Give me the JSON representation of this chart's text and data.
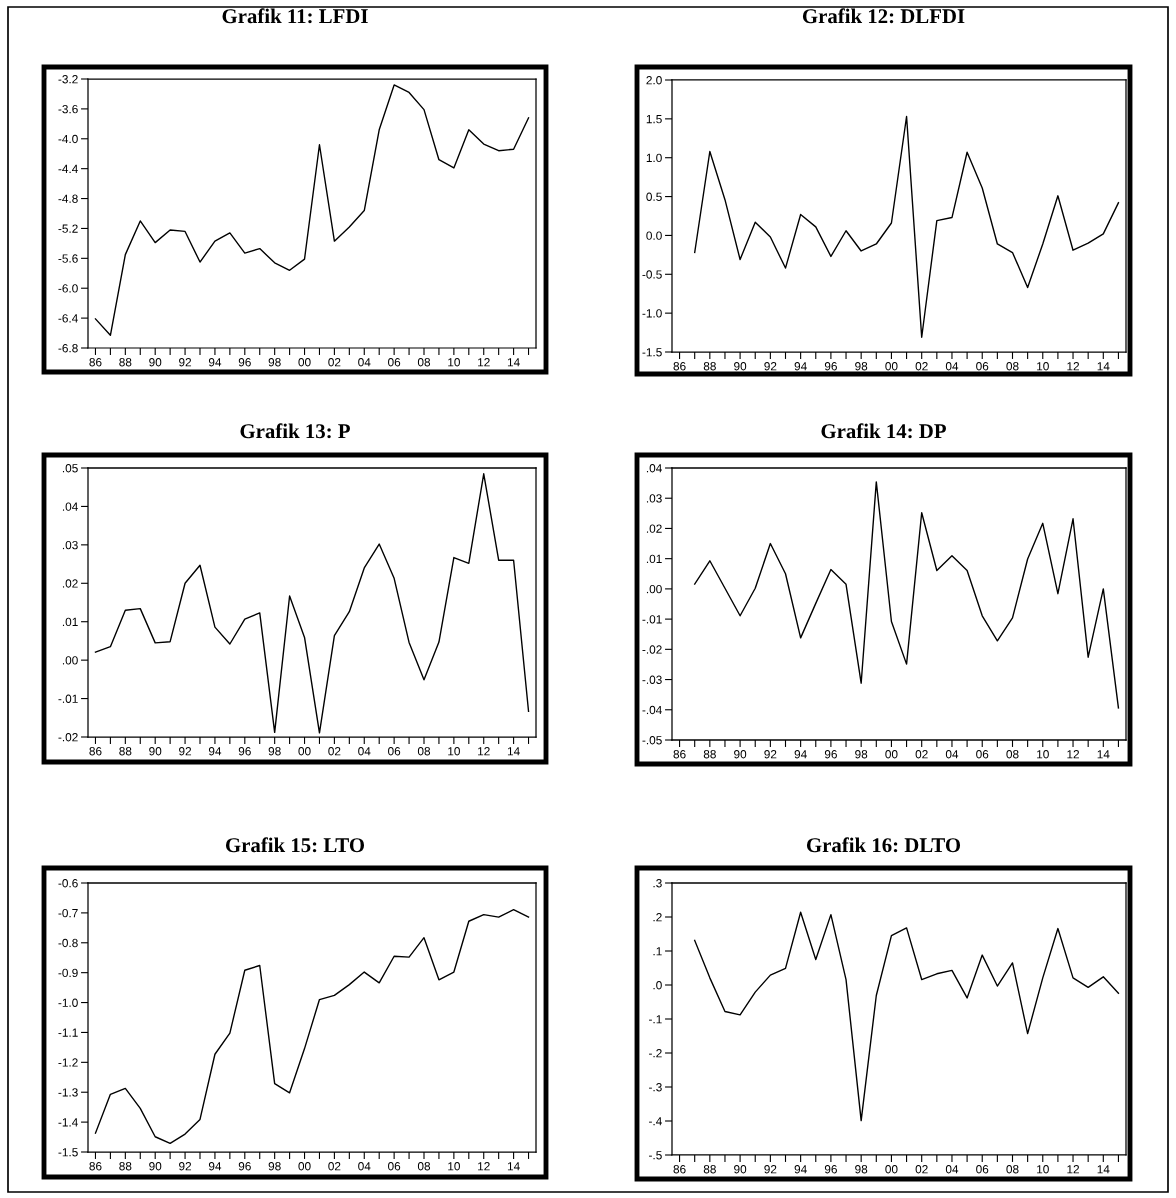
{
  "chart_data": [
    {
      "type": "line",
      "title": "Grafik 11: LFDI",
      "color": "#000000",
      "line_style": "solid",
      "x": [
        1986,
        1987,
        1988,
        1989,
        1990,
        1991,
        1992,
        1993,
        1994,
        1995,
        1996,
        1997,
        1998,
        1999,
        2000,
        2001,
        2002,
        2003,
        2004,
        2005,
        2006,
        2007,
        2008,
        2009,
        2010,
        2011,
        2012,
        2013,
        2014,
        2015
      ],
      "values": [
        -6.41,
        -6.63,
        -5.55,
        -5.1,
        -5.39,
        -5.22,
        -5.24,
        -5.65,
        -5.37,
        -5.26,
        -5.53,
        -5.47,
        -5.66,
        -5.76,
        -5.61,
        -4.08,
        -5.37,
        -5.18,
        -4.96,
        -3.88,
        -3.28,
        -3.38,
        -3.61,
        -4.28,
        -4.39,
        -3.88,
        -4.07,
        -4.16,
        -4.14,
        -3.72
      ],
      "xlim": [
        1985.5,
        2015.5
      ],
      "xticks": [
        {
          "value": 1986,
          "label": "86"
        },
        {
          "value": 1987,
          "label": null
        },
        {
          "value": 1988,
          "label": "88"
        },
        {
          "value": 1989,
          "label": null
        },
        {
          "value": 1990,
          "label": "90"
        },
        {
          "value": 1991,
          "label": null
        },
        {
          "value": 1992,
          "label": "92"
        },
        {
          "value": 1993,
          "label": null
        },
        {
          "value": 1994,
          "label": "94"
        },
        {
          "value": 1995,
          "label": null
        },
        {
          "value": 1996,
          "label": "96"
        },
        {
          "value": 1997,
          "label": null
        },
        {
          "value": 1998,
          "label": "98"
        },
        {
          "value": 1999,
          "label": null
        },
        {
          "value": 2000,
          "label": "00"
        },
        {
          "value": 2001,
          "label": null
        },
        {
          "value": 2002,
          "label": "02"
        },
        {
          "value": 2003,
          "label": null
        },
        {
          "value": 2004,
          "label": "04"
        },
        {
          "value": 2005,
          "label": null
        },
        {
          "value": 2006,
          "label": "06"
        },
        {
          "value": 2007,
          "label": null
        },
        {
          "value": 2008,
          "label": "08"
        },
        {
          "value": 2009,
          "label": null
        },
        {
          "value": 2010,
          "label": "10"
        },
        {
          "value": 2011,
          "label": null
        },
        {
          "value": 2012,
          "label": "12"
        },
        {
          "value": 2013,
          "label": null
        },
        {
          "value": 2014,
          "label": "14"
        },
        {
          "value": 2015,
          "label": null
        }
      ],
      "ylim": [
        -6.8,
        -3.2
      ],
      "yticks": [
        -6.8,
        -6.4,
        {
          "value": -6.0,
          "label": "-6.0"
        },
        -5.6,
        -5.2,
        -4.8,
        -4.4,
        {
          "value": -4.0,
          "label": "-4.0"
        },
        -3.6,
        -3.2
      ]
    },
    {
      "type": "line",
      "title": "Grafik 12: DLFDI",
      "color": "#000000",
      "line_style": "solid",
      "x": [
        1987,
        1988,
        1989,
        1990,
        1991,
        1992,
        1993,
        1994,
        1995,
        1996,
        1997,
        1998,
        1999,
        2000,
        2001,
        2002,
        2003,
        2004,
        2005,
        2006,
        2007,
        2008,
        2009,
        2010,
        2011,
        2012,
        2013,
        2014,
        2015
      ],
      "values": [
        -0.22,
        1.08,
        0.46,
        -0.31,
        0.17,
        -0.02,
        -0.42,
        0.27,
        0.11,
        -0.27,
        0.06,
        -0.2,
        -0.11,
        0.16,
        1.53,
        -1.31,
        0.19,
        0.23,
        1.07,
        0.61,
        -0.11,
        -0.22,
        -0.67,
        -0.11,
        0.51,
        -0.19,
        -0.1,
        0.02,
        0.42
      ],
      "xlim": [
        1985.5,
        2015.5
      ],
      "xticks": [
        {
          "value": 1986,
          "label": "86"
        },
        {
          "value": 1987,
          "label": null
        },
        {
          "value": 1988,
          "label": "88"
        },
        {
          "value": 1989,
          "label": null
        },
        {
          "value": 1990,
          "label": "90"
        },
        {
          "value": 1991,
          "label": null
        },
        {
          "value": 1992,
          "label": "92"
        },
        {
          "value": 1993,
          "label": null
        },
        {
          "value": 1994,
          "label": "94"
        },
        {
          "value": 1995,
          "label": null
        },
        {
          "value": 1996,
          "label": "96"
        },
        {
          "value": 1997,
          "label": null
        },
        {
          "value": 1998,
          "label": "98"
        },
        {
          "value": 1999,
          "label": null
        },
        {
          "value": 2000,
          "label": "00"
        },
        {
          "value": 2001,
          "label": null
        },
        {
          "value": 2002,
          "label": "02"
        },
        {
          "value": 2003,
          "label": null
        },
        {
          "value": 2004,
          "label": "04"
        },
        {
          "value": 2005,
          "label": null
        },
        {
          "value": 2006,
          "label": "06"
        },
        {
          "value": 2007,
          "label": null
        },
        {
          "value": 2008,
          "label": "08"
        },
        {
          "value": 2009,
          "label": null
        },
        {
          "value": 2010,
          "label": "10"
        },
        {
          "value": 2011,
          "label": null
        },
        {
          "value": 2012,
          "label": "12"
        },
        {
          "value": 2013,
          "label": null
        },
        {
          "value": 2014,
          "label": "14"
        },
        {
          "value": 2015,
          "label": null
        }
      ],
      "ylim": [
        -1.5,
        2.0
      ],
      "yticks": [
        -1.5,
        {
          "value": -1.0,
          "label": "-1.0"
        },
        -0.5,
        {
          "value": 0.0,
          "label": "0.0"
        },
        0.5,
        {
          "value": 1.0,
          "label": "1.0"
        },
        1.5,
        {
          "value": 2.0,
          "label": "2.0"
        }
      ]
    },
    {
      "type": "line",
      "title": "Grafik 13: P",
      "color": "#000000",
      "line_style": "solid",
      "x": [
        1986,
        1987,
        1988,
        1989,
        1990,
        1991,
        1992,
        1993,
        1994,
        1995,
        1996,
        1997,
        1998,
        1999,
        2000,
        2001,
        2002,
        2003,
        2004,
        2005,
        2006,
        2007,
        2008,
        2009,
        2010,
        2011,
        2012,
        2013,
        2014,
        2015
      ],
      "values": [
        0.0021,
        0.0035,
        0.013,
        0.0134,
        0.0045,
        0.0048,
        0.02,
        0.0247,
        0.0086,
        0.0042,
        0.0107,
        0.0123,
        -0.0188,
        0.0167,
        0.0059,
        -0.0189,
        0.0064,
        0.0126,
        0.024,
        0.0302,
        0.0213,
        0.0046,
        -0.0051,
        0.0047,
        0.0267,
        0.0252,
        0.0485,
        0.026,
        0.026,
        -0.0133
      ],
      "xlim": [
        1985.5,
        2015.5
      ],
      "xticks": [
        {
          "value": 1986,
          "label": "86"
        },
        {
          "value": 1987,
          "label": null
        },
        {
          "value": 1988,
          "label": "88"
        },
        {
          "value": 1989,
          "label": null
        },
        {
          "value": 1990,
          "label": "90"
        },
        {
          "value": 1991,
          "label": null
        },
        {
          "value": 1992,
          "label": "92"
        },
        {
          "value": 1993,
          "label": null
        },
        {
          "value": 1994,
          "label": "94"
        },
        {
          "value": 1995,
          "label": null
        },
        {
          "value": 1996,
          "label": "96"
        },
        {
          "value": 1997,
          "label": null
        },
        {
          "value": 1998,
          "label": "98"
        },
        {
          "value": 1999,
          "label": null
        },
        {
          "value": 2000,
          "label": "00"
        },
        {
          "value": 2001,
          "label": null
        },
        {
          "value": 2002,
          "label": "02"
        },
        {
          "value": 2003,
          "label": null
        },
        {
          "value": 2004,
          "label": "04"
        },
        {
          "value": 2005,
          "label": null
        },
        {
          "value": 2006,
          "label": "06"
        },
        {
          "value": 2007,
          "label": null
        },
        {
          "value": 2008,
          "label": "08"
        },
        {
          "value": 2009,
          "label": null
        },
        {
          "value": 2010,
          "label": "10"
        },
        {
          "value": 2011,
          "label": null
        },
        {
          "value": 2012,
          "label": "12"
        },
        {
          "value": 2013,
          "label": null
        },
        {
          "value": 2014,
          "label": "14"
        },
        {
          "value": 2015,
          "label": null
        }
      ],
      "ylim": [
        -0.02,
        0.05
      ],
      "yticks": [
        {
          "value": -0.02,
          "label": "-.02"
        },
        {
          "value": -0.01,
          "label": "-.01"
        },
        {
          "value": 0.0,
          "label": ".00"
        },
        {
          "value": 0.01,
          "label": ".01"
        },
        {
          "value": 0.02,
          "label": ".02"
        },
        {
          "value": 0.03,
          "label": ".03"
        },
        {
          "value": 0.04,
          "label": ".04"
        },
        {
          "value": 0.05,
          "label": ".05"
        }
      ]
    },
    {
      "type": "line",
      "title": "Grafik 14: DP",
      "color": "#000000",
      "line_style": "solid",
      "x": [
        1987,
        1988,
        1989,
        1990,
        1991,
        1992,
        1993,
        1994,
        1995,
        1996,
        1997,
        1998,
        1999,
        2000,
        2001,
        2002,
        2003,
        2004,
        2005,
        2006,
        2007,
        2008,
        2009,
        2010,
        2011,
        2012,
        2013,
        2014,
        2015
      ],
      "values": [
        0.0016,
        0.0093,
        0.0002,
        -0.0089,
        0.0002,
        0.015,
        0.005,
        -0.0162,
        -0.0048,
        0.0064,
        0.0015,
        -0.0312,
        0.0354,
        -0.0108,
        -0.0249,
        0.0252,
        0.0061,
        0.011,
        0.0061,
        -0.0089,
        -0.0172,
        -0.0096,
        0.0099,
        0.0217,
        -0.0016,
        0.0232,
        -0.0226,
        0.0,
        -0.0394
      ],
      "xlim": [
        1985.5,
        2015.5
      ],
      "xticks": [
        {
          "value": 1986,
          "label": "86"
        },
        {
          "value": 1987,
          "label": null
        },
        {
          "value": 1988,
          "label": "88"
        },
        {
          "value": 1989,
          "label": null
        },
        {
          "value": 1990,
          "label": "90"
        },
        {
          "value": 1991,
          "label": null
        },
        {
          "value": 1992,
          "label": "92"
        },
        {
          "value": 1993,
          "label": null
        },
        {
          "value": 1994,
          "label": "94"
        },
        {
          "value": 1995,
          "label": null
        },
        {
          "value": 1996,
          "label": "96"
        },
        {
          "value": 1997,
          "label": null
        },
        {
          "value": 1998,
          "label": "98"
        },
        {
          "value": 1999,
          "label": null
        },
        {
          "value": 2000,
          "label": "00"
        },
        {
          "value": 2001,
          "label": null
        },
        {
          "value": 2002,
          "label": "02"
        },
        {
          "value": 2003,
          "label": null
        },
        {
          "value": 2004,
          "label": "04"
        },
        {
          "value": 2005,
          "label": null
        },
        {
          "value": 2006,
          "label": "06"
        },
        {
          "value": 2007,
          "label": null
        },
        {
          "value": 2008,
          "label": "08"
        },
        {
          "value": 2009,
          "label": null
        },
        {
          "value": 2010,
          "label": "10"
        },
        {
          "value": 2011,
          "label": null
        },
        {
          "value": 2012,
          "label": "12"
        },
        {
          "value": 2013,
          "label": null
        },
        {
          "value": 2014,
          "label": "14"
        },
        {
          "value": 2015,
          "label": null
        }
      ],
      "ylim": [
        -0.05,
        0.04
      ],
      "yticks": [
        {
          "value": -0.05,
          "label": "-.05"
        },
        {
          "value": -0.04,
          "label": "-.04"
        },
        {
          "value": -0.03,
          "label": "-.03"
        },
        {
          "value": -0.02,
          "label": "-.02"
        },
        {
          "value": -0.01,
          "label": "-.01"
        },
        {
          "value": 0.0,
          "label": ".00"
        },
        {
          "value": 0.01,
          "label": ".01"
        },
        {
          "value": 0.02,
          "label": ".02"
        },
        {
          "value": 0.03,
          "label": ".03"
        },
        {
          "value": 0.04,
          "label": ".04"
        }
      ]
    },
    {
      "type": "line",
      "title": "Grafik 15: LTO",
      "color": "#000000",
      "line_style": "solid",
      "x": [
        1986,
        1987,
        1988,
        1989,
        1990,
        1991,
        1992,
        1993,
        1994,
        1995,
        1996,
        1997,
        1998,
        1999,
        2000,
        2001,
        2002,
        2003,
        2004,
        2005,
        2006,
        2007,
        2008,
        2009,
        2010,
        2011,
        2012,
        2013,
        2014,
        2015
      ],
      "values": [
        -1.437,
        -1.307,
        -1.287,
        -1.354,
        -1.449,
        -1.471,
        -1.44,
        -1.391,
        -1.173,
        -1.102,
        -0.892,
        -0.876,
        -1.271,
        -1.302,
        -1.154,
        -0.99,
        -0.976,
        -0.94,
        -0.898,
        -0.934,
        -0.845,
        -0.848,
        -0.783,
        -0.924,
        -0.898,
        -0.728,
        -0.706,
        -0.714,
        -0.689,
        -0.714
      ],
      "xlim": [
        1985.5,
        2015.5
      ],
      "xticks": [
        {
          "value": 1986,
          "label": "86"
        },
        {
          "value": 1987,
          "label": null
        },
        {
          "value": 1988,
          "label": "88"
        },
        {
          "value": 1989,
          "label": null
        },
        {
          "value": 1990,
          "label": "90"
        },
        {
          "value": 1991,
          "label": null
        },
        {
          "value": 1992,
          "label": "92"
        },
        {
          "value": 1993,
          "label": null
        },
        {
          "value": 1994,
          "label": "94"
        },
        {
          "value": 1995,
          "label": null
        },
        {
          "value": 1996,
          "label": "96"
        },
        {
          "value": 1997,
          "label": null
        },
        {
          "value": 1998,
          "label": "98"
        },
        {
          "value": 1999,
          "label": null
        },
        {
          "value": 2000,
          "label": "00"
        },
        {
          "value": 2001,
          "label": null
        },
        {
          "value": 2002,
          "label": "02"
        },
        {
          "value": 2003,
          "label": null
        },
        {
          "value": 2004,
          "label": "04"
        },
        {
          "value": 2005,
          "label": null
        },
        {
          "value": 2006,
          "label": "06"
        },
        {
          "value": 2007,
          "label": null
        },
        {
          "value": 2008,
          "label": "08"
        },
        {
          "value": 2009,
          "label": null
        },
        {
          "value": 2010,
          "label": "10"
        },
        {
          "value": 2011,
          "label": null
        },
        {
          "value": 2012,
          "label": "12"
        },
        {
          "value": 2013,
          "label": null
        },
        {
          "value": 2014,
          "label": "14"
        },
        {
          "value": 2015,
          "label": null
        }
      ],
      "ylim": [
        -1.5,
        -0.6
      ],
      "yticks": [
        -1.5,
        -1.4,
        -1.3,
        -1.2,
        -1.1,
        {
          "value": -1.0,
          "label": "-1.0"
        },
        -0.9,
        -0.8,
        -0.7,
        -0.6
      ]
    },
    {
      "type": "line",
      "title": "Grafik 16: DLTO",
      "color": "#000000",
      "line_style": "solid",
      "x": [
        1987,
        1988,
        1989,
        1990,
        1991,
        1992,
        1993,
        1994,
        1995,
        1996,
        1997,
        1998,
        1999,
        2000,
        2001,
        2002,
        2003,
        2004,
        2005,
        2006,
        2007,
        2008,
        2009,
        2010,
        2011,
        2012,
        2013,
        2014,
        2015
      ],
      "values": [
        0.131,
        0.021,
        -0.078,
        -0.088,
        -0.021,
        0.029,
        0.049,
        0.214,
        0.075,
        0.207,
        0.016,
        -0.399,
        -0.031,
        0.145,
        0.168,
        0.016,
        0.033,
        0.043,
        -0.038,
        0.088,
        -0.003,
        0.065,
        -0.143,
        0.021,
        0.166,
        0.021,
        -0.007,
        0.024,
        -0.024
      ],
      "xlim": [
        1985.5,
        2015.5
      ],
      "xticks": [
        {
          "value": 1986,
          "label": "86"
        },
        {
          "value": 1987,
          "label": null
        },
        {
          "value": 1988,
          "label": "88"
        },
        {
          "value": 1989,
          "label": null
        },
        {
          "value": 1990,
          "label": "90"
        },
        {
          "value": 1991,
          "label": null
        },
        {
          "value": 1992,
          "label": "92"
        },
        {
          "value": 1993,
          "label": null
        },
        {
          "value": 1994,
          "label": "94"
        },
        {
          "value": 1995,
          "label": null
        },
        {
          "value": 1996,
          "label": "96"
        },
        {
          "value": 1997,
          "label": null
        },
        {
          "value": 1998,
          "label": "98"
        },
        {
          "value": 1999,
          "label": null
        },
        {
          "value": 2000,
          "label": "00"
        },
        {
          "value": 2001,
          "label": null
        },
        {
          "value": 2002,
          "label": "02"
        },
        {
          "value": 2003,
          "label": null
        },
        {
          "value": 2004,
          "label": "04"
        },
        {
          "value": 2005,
          "label": null
        },
        {
          "value": 2006,
          "label": "06"
        },
        {
          "value": 2007,
          "label": null
        },
        {
          "value": 2008,
          "label": "08"
        },
        {
          "value": 2009,
          "label": null
        },
        {
          "value": 2010,
          "label": "10"
        },
        {
          "value": 2011,
          "label": null
        },
        {
          "value": 2012,
          "label": "12"
        },
        {
          "value": 2013,
          "label": null
        },
        {
          "value": 2014,
          "label": "14"
        },
        {
          "value": 2015,
          "label": null
        }
      ],
      "ylim": [
        -0.5,
        0.3
      ],
      "yticks": [
        {
          "value": -0.5,
          "label": "-.5"
        },
        {
          "value": -0.4,
          "label": "-.4"
        },
        {
          "value": -0.3,
          "label": "-.3"
        },
        {
          "value": -0.2,
          "label": "-.2"
        },
        {
          "value": -0.1,
          "label": "-.1"
        },
        {
          "value": 0.0,
          "label": ".0"
        },
        {
          "value": 0.1,
          "label": ".1"
        },
        {
          "value": 0.2,
          "label": ".2"
        },
        {
          "value": 0.3,
          "label": ".3"
        }
      ]
    }
  ]
}
